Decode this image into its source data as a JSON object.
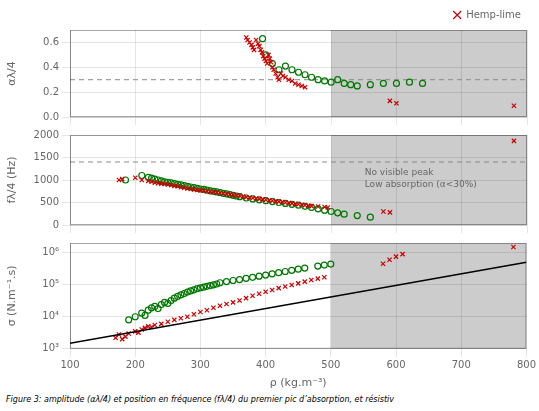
{
  "chart_data": [
    {
      "type": "scatter",
      "ylabel": "αλ/4",
      "xlim": [
        100,
        800
      ],
      "xticks": [
        100,
        200,
        300,
        400,
        500,
        600,
        700,
        800
      ],
      "ylim": [
        0.0,
        0.7
      ],
      "yticks": [
        {
          "value": 0,
          "label": "0.0"
        },
        0.2,
        0.4,
        0.6
      ],
      "grid": true,
      "legend": "upper right",
      "tick_labels": "y",
      "regions": [
        {
          "x": [
            500,
            800
          ],
          "color": "#cccccc"
        }
      ],
      "hlines": [
        {
          "y": 0.3,
          "color": "#888888",
          "line_style": "dashed"
        }
      ],
      "series": [
        {
          "name": "Hemp-lime",
          "color": "#cc0000",
          "marker": "x",
          "x": [
            370,
            372,
            375,
            378,
            380,
            382,
            385,
            388,
            390,
            392,
            394,
            396,
            398,
            400,
            402,
            404,
            406,
            408,
            410,
            412,
            415,
            418,
            420,
            423,
            426,
            430,
            435,
            440,
            445,
            450,
            455,
            460,
            590,
            600,
            780
          ],
          "values": [
            0.64,
            0.62,
            0.6,
            0.58,
            0.56,
            0.54,
            0.62,
            0.59,
            0.57,
            0.54,
            0.52,
            0.49,
            0.47,
            0.45,
            0.43,
            0.5,
            0.47,
            0.44,
            0.4,
            0.38,
            0.35,
            0.32,
            0.3,
            0.35,
            0.33,
            0.32,
            0.3,
            0.29,
            0.27,
            0.26,
            0.25,
            0.24,
            0.13,
            0.11,
            0.09
          ]
        },
        {
          "color": "#007700",
          "marker": "o",
          "x": [
            395,
            400,
            410,
            420,
            430,
            440,
            450,
            460,
            470,
            480,
            490,
            500,
            510,
            520,
            530,
            540,
            560,
            580,
            600,
            620,
            640
          ],
          "values": [
            0.63,
            0.5,
            0.43,
            0.38,
            0.41,
            0.38,
            0.36,
            0.34,
            0.32,
            0.3,
            0.29,
            0.28,
            0.3,
            0.27,
            0.26,
            0.25,
            0.26,
            0.27,
            0.27,
            0.28,
            0.27
          ]
        }
      ]
    },
    {
      "type": "scatter",
      "ylabel": "fλ/4 (Hz)",
      "xlim": [
        100,
        800
      ],
      "xticks": [
        100,
        200,
        300,
        400,
        500,
        600,
        700,
        800
      ],
      "ylim": [
        0,
        2000
      ],
      "yticks": [
        0,
        500,
        1000,
        1500,
        2000
      ],
      "grid": true,
      "tick_labels": "y",
      "regions": [
        {
          "x": [
            500,
            800
          ],
          "color": "#cccccc"
        }
      ],
      "hlines": [
        {
          "y": 1400,
          "color": "#888888",
          "line_style": "dashed"
        }
      ],
      "annotations": [
        "No visible peak\nLow absorption (α<30%)"
      ],
      "series": [
        {
          "color": "#cc0000",
          "marker": "x",
          "x": [
            175,
            180,
            200,
            210,
            220,
            225,
            230,
            235,
            240,
            245,
            250,
            255,
            260,
            265,
            270,
            275,
            280,
            285,
            290,
            295,
            300,
            305,
            310,
            315,
            320,
            325,
            330,
            335,
            340,
            345,
            350,
            355,
            360,
            365,
            370,
            375,
            380,
            385,
            390,
            395,
            400,
            405,
            410,
            415,
            420,
            425,
            430,
            435,
            440,
            445,
            450,
            455,
            460,
            465,
            470,
            480,
            490,
            495,
            580,
            590,
            780
          ],
          "values": [
            1000,
            1020,
            1050,
            1000,
            980,
            960,
            940,
            930,
            920,
            910,
            900,
            890,
            870,
            860,
            840,
            830,
            810,
            800,
            790,
            780,
            770,
            760,
            750,
            740,
            730,
            720,
            710,
            700,
            690,
            680,
            670,
            660,
            650,
            635,
            620,
            610,
            600,
            590,
            580,
            570,
            560,
            550,
            540,
            530,
            520,
            510,
            500,
            490,
            480,
            470,
            460,
            450,
            440,
            430,
            420,
            410,
            400,
            390,
            300,
            280,
            1870
          ]
        },
        {
          "color": "#007700",
          "marker": "o",
          "x": [
            185,
            210,
            220,
            225,
            230,
            235,
            240,
            245,
            250,
            255,
            260,
            265,
            270,
            275,
            280,
            285,
            290,
            295,
            300,
            305,
            310,
            315,
            320,
            325,
            330,
            335,
            340,
            345,
            350,
            355,
            360,
            370,
            380,
            390,
            400,
            410,
            420,
            430,
            440,
            450,
            460,
            470,
            480,
            490,
            500,
            510,
            520,
            540,
            560
          ],
          "values": [
            1000,
            1100,
            1060,
            1040,
            1020,
            1000,
            980,
            960,
            950,
            935,
            920,
            905,
            890,
            875,
            860,
            845,
            830,
            815,
            800,
            790,
            775,
            760,
            748,
            735,
            720,
            705,
            690,
            675,
            660,
            645,
            630,
            600,
            580,
            560,
            540,
            520,
            500,
            480,
            460,
            440,
            415,
            390,
            360,
            330,
            300,
            270,
            240,
            210,
            175
          ]
        }
      ]
    },
    {
      "type": "scatter",
      "ylabel": "σ (N.m⁻¹.s)",
      "xlabel": "ρ (kg.m⁻³)",
      "caption": "Figure 3: amplitude (αλ/4) et position en fréquence (fλ/4) du premier pic d’absorption, et résistiv",
      "log": "y",
      "xlim": [
        100,
        800
      ],
      "xticks": [
        100,
        200,
        300,
        400,
        500,
        600,
        700,
        800
      ],
      "ylim": [
        1000,
        2000000
      ],
      "yticks": [
        {
          "value": 1000,
          "label": "10³"
        },
        {
          "value": 10000,
          "label": "10⁴"
        },
        {
          "value": 100000,
          "label": "10⁵"
        },
        {
          "value": 1000000,
          "label": "10⁶"
        }
      ],
      "grid": true,
      "regions": [
        {
          "x": [
            500,
            800
          ],
          "color": "#cccccc"
        }
      ],
      "series": [
        {
          "color": "#cc0000",
          "marker": "x",
          "x": [
            170,
            175,
            180,
            185,
            190,
            200,
            205,
            210,
            215,
            220,
            225,
            230,
            240,
            250,
            260,
            270,
            280,
            290,
            300,
            310,
            320,
            330,
            340,
            350,
            360,
            370,
            380,
            390,
            400,
            410,
            420,
            430,
            440,
            450,
            460,
            470,
            480,
            490,
            580,
            590,
            600,
            610,
            780
          ],
          "values": [
            2200,
            2800,
            2000,
            2400,
            3000,
            3500,
            3200,
            4000,
            4500,
            5000,
            4800,
            5500,
            6000,
            7000,
            8000,
            9000,
            10000,
            12000,
            14000,
            16000,
            19000,
            22000,
            25000,
            28000,
            32000,
            38000,
            45000,
            52000,
            60000,
            68000,
            78000,
            88000,
            98000,
            110000,
            125000,
            140000,
            155000,
            170000,
            450000,
            600000,
            750000,
            900000,
            1500000
          ]
        },
        {
          "color": "#007700",
          "marker": "o",
          "x": [
            190,
            200,
            210,
            215,
            220,
            225,
            230,
            235,
            240,
            245,
            250,
            255,
            260,
            265,
            270,
            275,
            280,
            285,
            290,
            295,
            300,
            305,
            310,
            315,
            320,
            325,
            330,
            340,
            350,
            360,
            370,
            380,
            390,
            400,
            410,
            420,
            430,
            440,
            450,
            460,
            480,
            490,
            500
          ],
          "values": [
            8000,
            10000,
            13000,
            11000,
            16000,
            19000,
            21000,
            18000,
            24000,
            28000,
            26000,
            32000,
            38000,
            43000,
            48000,
            53000,
            59000,
            64000,
            69000,
            75000,
            80000,
            84000,
            89000,
            94000,
            99000,
            105000,
            115000,
            125000,
            135000,
            145000,
            158000,
            170000,
            185000,
            200000,
            218000,
            238000,
            258000,
            280000,
            305000,
            330000,
            380000,
            410000,
            440000
          ]
        },
        {
          "type": "line",
          "color": "#000000",
          "line_style": "solid",
          "x": [
            100,
            800
          ],
          "values": [
            1500,
            500000
          ]
        }
      ]
    }
  ]
}
